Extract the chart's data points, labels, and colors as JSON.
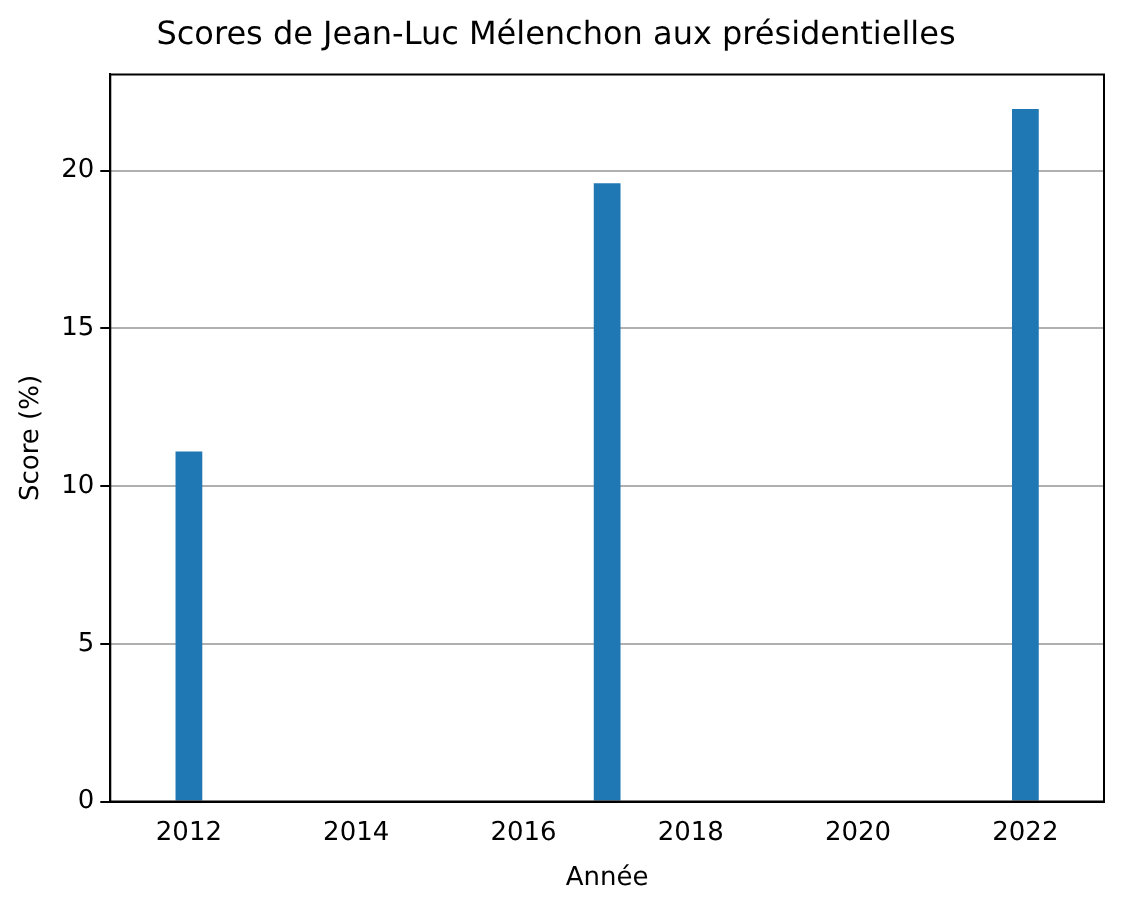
{
  "chart_data": {
    "type": "bar",
    "title": "Scores de Jean-Luc Mélenchon aux présidentielles",
    "xlabel": "Année",
    "ylabel": "Score (%)",
    "x": [
      2012,
      2017,
      2022
    ],
    "values": [
      11.1,
      19.6,
      21.95
    ],
    "color": "#1f77b4",
    "xlim": [
      2011.06,
      2022.94
    ],
    "xticks": [
      2012,
      2014,
      2016,
      2018,
      2020,
      2022
    ],
    "ylim": [
      0,
      23.05
    ],
    "yticks": [
      0,
      5,
      10,
      15,
      20
    ],
    "grid": "y",
    "legend": false
  }
}
